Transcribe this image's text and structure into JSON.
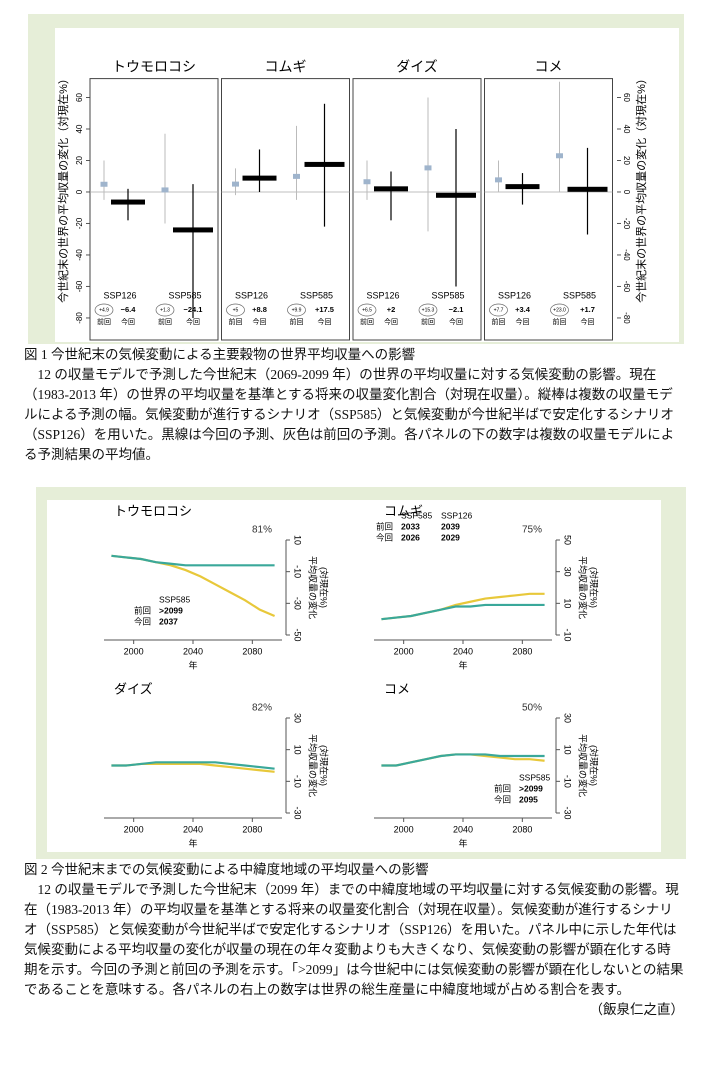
{
  "figure1": {
    "y_label": "今世紀末の世界の平均収量の変化（対現在%）",
    "prev_label": "前回",
    "current_label": "今回",
    "ylim": [
      -94,
      72
    ],
    "yticks": [
      -80,
      -60,
      -40,
      -20,
      0,
      20,
      40,
      60
    ],
    "prev_color": "#9fb4cc",
    "current_color": "#000000",
    "range_color": "#bbbbbb",
    "panels": [
      {
        "title": "トウモロコシ",
        "scenarios": [
          {
            "name": "SSP126",
            "prev": {
              "value": 4.9,
              "label": "+4.9",
              "range": [
                -5,
                20
              ]
            },
            "current": {
              "value": -6.4,
              "label": "−6.4",
              "range": [
                -18,
                2
              ]
            }
          },
          {
            "name": "SSP585",
            "prev": {
              "value": 1.3,
              "label": "+1.3",
              "range": [
                -20,
                37
              ]
            },
            "current": {
              "value": -24.1,
              "label": "−24.1",
              "range": [
                -80,
                5
              ]
            }
          }
        ]
      },
      {
        "title": "コムギ",
        "scenarios": [
          {
            "name": "SSP126",
            "prev": {
              "value": 5,
              "label": "+5",
              "range": [
                -2,
                15
              ]
            },
            "current": {
              "value": 8.8,
              "label": "+8.8",
              "range": [
                0,
                27
              ]
            }
          },
          {
            "name": "SSP585",
            "prev": {
              "value": 9.9,
              "label": "+9.9",
              "range": [
                -5,
                42
              ]
            },
            "current": {
              "value": 17.5,
              "label": "+17.5",
              "range": [
                -22,
                56
              ]
            }
          }
        ]
      },
      {
        "title": "ダイズ",
        "scenarios": [
          {
            "name": "SSP126",
            "prev": {
              "value": 6.5,
              "label": "+6.5",
              "range": [
                -5,
                20
              ]
            },
            "current": {
              "value": 2,
              "label": "+2",
              "range": [
                -18,
                13
              ]
            }
          },
          {
            "name": "SSP585",
            "prev": {
              "value": 15.3,
              "label": "+15.3",
              "range": [
                -25,
                60
              ]
            },
            "current": {
              "value": -2.1,
              "label": "−2.1",
              "range": [
                -60,
                40
              ]
            }
          }
        ]
      },
      {
        "title": "コメ",
        "scenarios": [
          {
            "name": "SSP126",
            "prev": {
              "value": 7.7,
              "label": "+7.7",
              "range": [
                0,
                20
              ]
            },
            "current": {
              "value": 3.4,
              "label": "+3.4",
              "range": [
                -8,
                12
              ]
            }
          },
          {
            "name": "SSP585",
            "prev": {
              "value": 23.0,
              "label": "+23.0",
              "range": [
                0,
                70
              ]
            },
            "current": {
              "value": 1.7,
              "label": "+1.7",
              "range": [
                -27,
                28
              ]
            }
          }
        ]
      }
    ]
  },
  "caption1": {
    "title": "図 1 今世紀末の気候変動による主要穀物の世界平均収量への影響",
    "text": "12 の収量モデルで予測した今世紀末（2069-2099 年）の世界の平均収量に対する気候変動の影響。現在（1983-2013 年）の世界の平均収量を基準とする将来の収量変化割合（対現在収量）。縦棒は複数の収量モデルによる予測の幅。気候変動が進行するシナリオ（SSP585）と気候変動が今世紀半ばで安定化するシナリオ（SSP126）を用いた。黒線は今回の予測、灰色は前回の予測。各パネルの下の数字は複数の収量モデルによる予測結果の平均値。"
  },
  "figure2": {
    "x_label": "年",
    "y_label": [
      "平均収量の変化",
      "(対現在%)"
    ],
    "xlim": [
      1980,
      2100
    ],
    "xticks": [
      2000,
      2040,
      2080
    ],
    "x": [
      1985,
      1995,
      2005,
      2015,
      2025,
      2035,
      2045,
      2055,
      2065,
      2075,
      2085,
      2095
    ],
    "colors": [
      "#3aa89a",
      "#e8c83a"
    ],
    "panels": [
      {
        "title": "トウモロコシ",
        "share": "81%",
        "ylim": [
          -50,
          10
        ],
        "yticks": [
          -50,
          -30,
          -10,
          10
        ],
        "series": [
          [
            0,
            -1,
            -2,
            -4,
            -5,
            -6,
            -6,
            -6,
            -6,
            -6,
            -6,
            -6
          ],
          [
            0,
            -1,
            -2,
            -4,
            -6,
            -9,
            -13,
            -18,
            -23,
            -28,
            -34,
            -38
          ]
        ],
        "annotation": {
          "scenarios": [
            "SSP585"
          ],
          "rows": [
            {
              "label": "前回",
              "values": [
                ">2099"
              ]
            },
            {
              "label": "今回",
              "values": [
                "2037"
              ]
            }
          ]
        }
      },
      {
        "title": "コムギ",
        "share": "75%",
        "ylim": [
          -10,
          50
        ],
        "yticks": [
          -10,
          10,
          30,
          50
        ],
        "series": [
          [
            0,
            1,
            2,
            4,
            6,
            8,
            8,
            9,
            9,
            9,
            9,
            9
          ],
          [
            0,
            1,
            2,
            4,
            6,
            9,
            11,
            13,
            14,
            15,
            16,
            16
          ]
        ],
        "annotation": {
          "scenarios": [
            "SSP585",
            "SSP126"
          ],
          "rows": [
            {
              "label": "前回",
              "values": [
                "2033",
                "2039"
              ]
            },
            {
              "label": "今回",
              "values": [
                "2026",
                "2029"
              ]
            }
          ]
        }
      },
      {
        "title": "ダイズ",
        "share": "82%",
        "ylim": [
          -30,
          30
        ],
        "yticks": [
          -30,
          -10,
          10,
          30
        ],
        "series": [
          [
            0,
            0,
            1,
            2,
            2,
            2,
            2,
            2,
            1,
            0,
            -1,
            -2
          ],
          [
            0,
            0,
            1,
            1,
            1,
            1,
            1,
            0,
            -1,
            -2,
            -3,
            -4
          ]
        ]
      },
      {
        "title": "コメ",
        "share": "50%",
        "ylim": [
          -30,
          30
        ],
        "yticks": [
          -30,
          -10,
          10,
          30
        ],
        "series": [
          [
            0,
            0,
            2,
            4,
            6,
            7,
            7,
            7,
            6,
            6,
            6,
            6
          ],
          [
            0,
            0,
            2,
            4,
            6,
            7,
            7,
            6,
            5,
            4,
            4,
            3
          ]
        ],
        "annotation": {
          "scenarios": [
            "SSP585"
          ],
          "rows": [
            {
              "label": "前回",
              "values": [
                ">2099"
              ]
            },
            {
              "label": "今回",
              "values": [
                "2095"
              ]
            }
          ]
        }
      }
    ]
  },
  "caption2": {
    "title": "図 2 今世紀末までの気候変動による中緯度地域の平均収量への影響",
    "text": "12 の収量モデルで予測した今世紀末（2099 年）までの中緯度地域の平均収量に対する気候変動の影響。現在（1983-2013 年）の平均収量を基準とする将来の収量変化割合（対現在収量）。気候変動が進行するシナリオ（SSP585）と気候変動が今世紀半ばで安定化するシナリオ（SSP126）を用いた。パネル中に示した年代は気候変動による平均収量の変化が収量の現在の年々変動よりも大きくなり、気候変動の影響が顕在化する時期を示す。今回の予測と前回の予測を示す。「>2099」は今世紀中には気候変動の影響が顕在化しないとの結果であることを意味する。各パネルの右上の数字は世界の総生産量に中緯度地域が占める割合を表す。",
    "author": "（飯泉仁之直）"
  }
}
